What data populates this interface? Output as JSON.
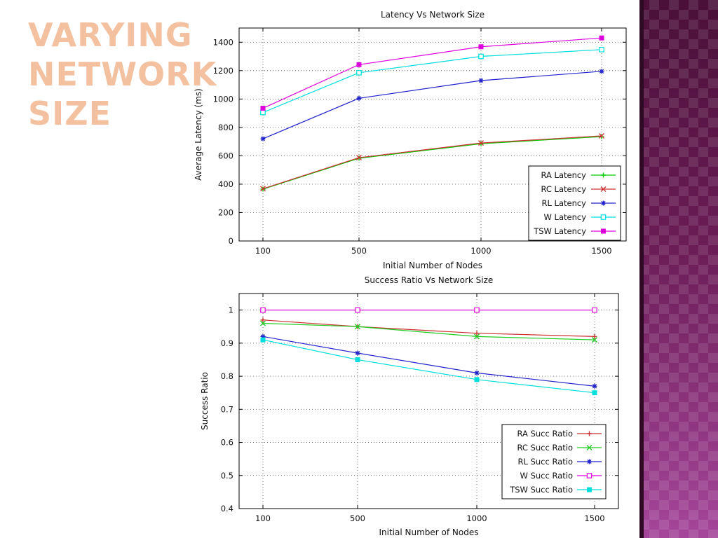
{
  "slide": {
    "title_lines": [
      "VARYING",
      "NETWORK",
      "SIZE"
    ]
  },
  "colors": {
    "title": "#f3c1a0",
    "panel_dark": "#4a1039",
    "panel_light": "#a5469a",
    "RA": "#00cc00",
    "RC": "#cc3333",
    "RL": "#2222cc",
    "W": "#00dddd",
    "TSW": "#dd00dd"
  },
  "chart_data": [
    {
      "type": "line",
      "title": "Latency Vs Network Size",
      "xlabel": "Initial Number of Nodes",
      "ylabel": "Average Latency (ms)",
      "categories": [
        "100",
        "500",
        "1000",
        "1500"
      ],
      "ylim": [
        0,
        1500
      ],
      "yticks": [
        0,
        200,
        400,
        600,
        800,
        1000,
        1200,
        1400
      ],
      "grid": true,
      "legend": "bottom-right",
      "series": [
        {
          "name": "RA Latency",
          "values": [
            365,
            583,
            685,
            735
          ],
          "color": "#00cc00",
          "marker": "plus"
        },
        {
          "name": "RC Latency",
          "values": [
            368,
            587,
            690,
            740
          ],
          "color": "#cc3333",
          "marker": "cross"
        },
        {
          "name": "RL Latency",
          "values": [
            720,
            1005,
            1130,
            1195
          ],
          "color": "#2222cc",
          "marker": "star"
        },
        {
          "name": "W Latency",
          "values": [
            905,
            1185,
            1300,
            1348
          ],
          "color": "#00dddd",
          "marker": "open-square"
        },
        {
          "name": "TSW Latency",
          "values": [
            935,
            1242,
            1368,
            1430
          ],
          "color": "#dd00dd",
          "marker": "filled-square"
        }
      ]
    },
    {
      "type": "line",
      "title": "Success Ratio Vs Network Size",
      "xlabel": "Initial Number of Nodes",
      "ylabel": "Success Ratio",
      "categories": [
        "100",
        "500",
        "1000",
        "1500"
      ],
      "ylim": [
        0.4,
        1.05
      ],
      "yticks": [
        0.4,
        0.5,
        0.6,
        0.7,
        0.8,
        0.9,
        1
      ],
      "grid": true,
      "legend": "bottom-right",
      "series": [
        {
          "name": "RA Succ Ratio",
          "values": [
            0.97,
            0.95,
            0.93,
            0.92
          ],
          "color": "#cc3333",
          "marker": "plus"
        },
        {
          "name": "RC Succ Ratio",
          "values": [
            0.96,
            0.95,
            0.92,
            0.91
          ],
          "color": "#22cc22",
          "marker": "cross"
        },
        {
          "name": "RL Succ Ratio",
          "values": [
            0.92,
            0.87,
            0.81,
            0.77
          ],
          "color": "#2222cc",
          "marker": "star"
        },
        {
          "name": "W Succ Ratio",
          "values": [
            1.0,
            1.0,
            1.0,
            1.0
          ],
          "color": "#dd00dd",
          "marker": "open-square"
        },
        {
          "name": "TSW Succ Ratio",
          "values": [
            0.91,
            0.85,
            0.79,
            0.75
          ],
          "color": "#00dddd",
          "marker": "filled-square"
        }
      ]
    }
  ]
}
